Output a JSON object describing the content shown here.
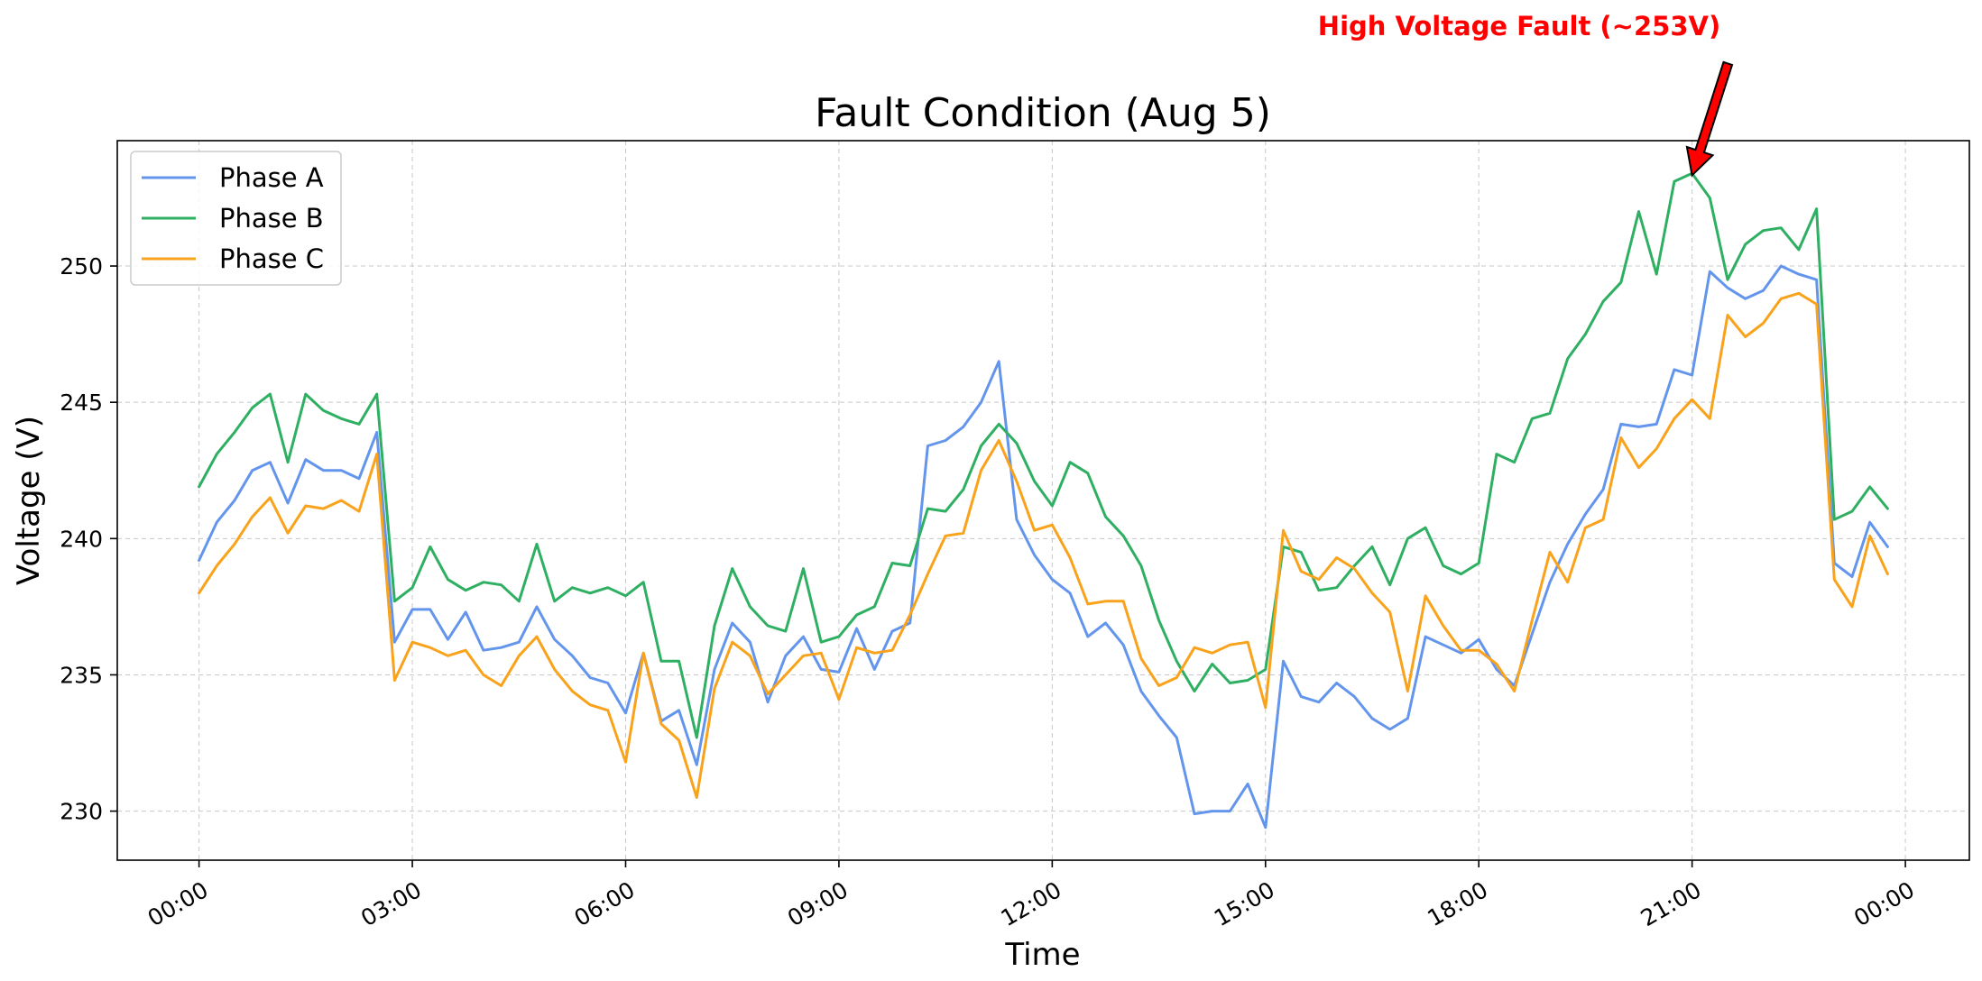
{
  "chart_data": {
    "type": "line",
    "title": "Fault Condition (Aug 5)",
    "xlabel": "Time",
    "ylabel": "Voltage (V)",
    "x_tick_labels": [
      "00:00",
      "03:00",
      "06:00",
      "09:00",
      "12:00",
      "15:00",
      "18:00",
      "21:00",
      "00:00"
    ],
    "x_tick_hours": [
      0,
      3,
      6,
      9,
      12,
      15,
      18,
      21,
      24
    ],
    "y_ticks": [
      230,
      235,
      240,
      245,
      250
    ],
    "xlim_hours": [
      -1.15,
      24.9
    ],
    "ylim": [
      228.2,
      254.6
    ],
    "grid": true,
    "legend_position": "upper-left",
    "annotation": {
      "text": "High Voltage Fault (~253V)",
      "color": "#ff0000",
      "target_hour": 21.0,
      "target_value": 253.4
    },
    "time_step_hours": 0.25,
    "series": [
      {
        "name": "Phase A",
        "color": "#6495ed",
        "values": [
          239.2,
          240.6,
          241.4,
          242.5,
          242.8,
          241.3,
          242.9,
          242.5,
          242.5,
          242.2,
          243.9,
          236.2,
          237.4,
          237.4,
          236.3,
          237.3,
          235.9,
          236.0,
          236.2,
          237.5,
          236.3,
          235.7,
          234.9,
          234.7,
          233.6,
          235.8,
          233.3,
          233.7,
          231.7,
          235.2,
          236.9,
          236.2,
          234.0,
          235.7,
          236.4,
          235.2,
          235.1,
          236.7,
          235.2,
          236.6,
          236.9,
          243.4,
          243.6,
          244.1,
          245.0,
          246.5,
          240.7,
          239.4,
          238.5,
          238.0,
          236.4,
          236.9,
          236.1,
          234.4,
          233.5,
          232.7,
          229.9,
          230.0,
          230.0,
          231.0,
          229.4,
          235.5,
          234.2,
          234.0,
          234.7,
          234.2,
          233.4,
          233.0,
          233.4,
          236.4,
          236.1,
          235.8,
          236.3,
          235.2,
          234.6,
          236.5,
          238.4,
          239.8,
          240.9,
          241.8,
          244.2,
          244.1,
          244.2,
          246.2,
          246.0,
          249.8,
          249.2,
          248.8,
          249.1,
          250.0,
          249.7,
          249.5,
          239.1,
          238.6,
          240.6,
          239.7
        ]
      },
      {
        "name": "Phase B",
        "color": "#2eaf62",
        "values": [
          241.9,
          243.1,
          243.9,
          244.8,
          245.3,
          242.8,
          245.3,
          244.7,
          244.4,
          244.2,
          245.3,
          237.7,
          238.2,
          239.7,
          238.5,
          238.1,
          238.4,
          238.3,
          237.7,
          239.8,
          237.7,
          238.2,
          238.0,
          238.2,
          237.9,
          238.4,
          235.5,
          235.5,
          232.7,
          236.8,
          238.9,
          237.5,
          236.8,
          236.6,
          238.9,
          236.2,
          236.4,
          237.2,
          237.5,
          239.1,
          239.0,
          241.1,
          241.0,
          241.8,
          243.4,
          244.2,
          243.5,
          242.1,
          241.2,
          242.8,
          242.4,
          240.8,
          240.1,
          239.0,
          237.0,
          235.5,
          234.4,
          235.4,
          234.7,
          234.8,
          235.2,
          239.7,
          239.5,
          238.1,
          238.2,
          239.0,
          239.7,
          238.3,
          240.0,
          240.4,
          239.0,
          238.7,
          239.1,
          243.1,
          242.8,
          244.4,
          244.6,
          246.6,
          247.5,
          248.7,
          249.4,
          252.0,
          249.7,
          253.1,
          253.4,
          252.5,
          249.5,
          250.8,
          251.3,
          251.4,
          250.6,
          252.1,
          240.7,
          241.0,
          241.9,
          241.1
        ]
      },
      {
        "name": "Phase C",
        "color": "#f9a21b",
        "values": [
          238.0,
          239.0,
          239.8,
          240.8,
          241.5,
          240.2,
          241.2,
          241.1,
          241.4,
          241.0,
          243.1,
          234.8,
          236.2,
          236.0,
          235.7,
          235.9,
          235.0,
          234.6,
          235.7,
          236.4,
          235.2,
          234.4,
          233.9,
          233.7,
          231.8,
          235.8,
          233.2,
          232.6,
          230.5,
          234.5,
          236.2,
          235.7,
          234.3,
          235.0,
          235.7,
          235.8,
          234.1,
          236.0,
          235.8,
          235.9,
          237.2,
          238.7,
          240.1,
          240.2,
          242.5,
          243.6,
          242.1,
          240.3,
          240.5,
          239.3,
          237.6,
          237.7,
          237.7,
          235.6,
          234.6,
          234.9,
          236.0,
          235.8,
          236.1,
          236.2,
          233.8,
          240.3,
          238.8,
          238.5,
          239.3,
          238.9,
          238.0,
          237.3,
          234.4,
          237.9,
          236.8,
          235.9,
          235.9,
          235.4,
          234.4,
          237.0,
          239.5,
          238.4,
          240.4,
          240.7,
          243.7,
          242.6,
          243.3,
          244.4,
          245.1,
          244.4,
          248.2,
          247.4,
          247.9,
          248.8,
          249.0,
          248.6,
          238.5,
          237.5,
          240.1,
          238.7
        ]
      }
    ]
  }
}
